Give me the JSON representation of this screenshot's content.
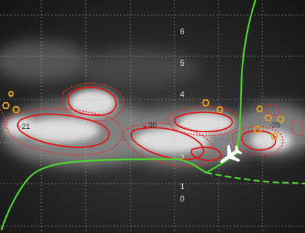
{
  "viewer": {
    "scale_labels": [
      "6",
      "5",
      "4",
      "3",
      "2",
      "1",
      "0"
    ],
    "track_labels": [
      "30",
      "-25",
      "-21"
    ]
  },
  "icons": {
    "aircraft": "airplane-icon"
  },
  "colors": {
    "grid": "#b8b8b8",
    "track_line": "#4cd62b",
    "contour_solid": "#e01515",
    "contour_dotted": "#e8302a",
    "marker": "#e0a020",
    "aircraft": "#ffffff"
  }
}
